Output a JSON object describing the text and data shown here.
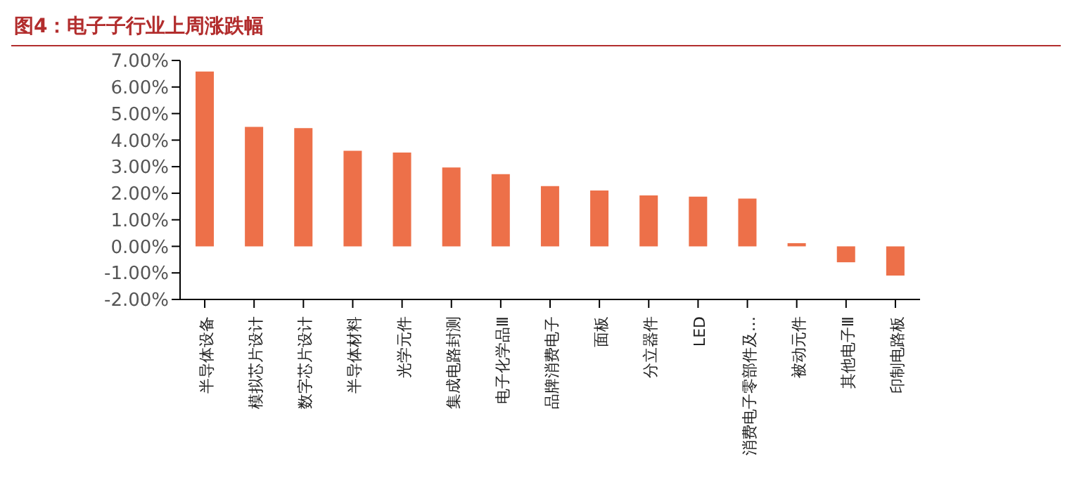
{
  "chart_data": {
    "type": "bar",
    "title": "图4：电子子行业上周涨跌幅",
    "categories": [
      "半导体设备",
      "模拟芯片设计",
      "数字芯片设计",
      "半导体材料",
      "光学元件",
      "集成电路封测",
      "电子化学品Ⅲ",
      "品牌消费电子",
      "面板",
      "分立器件",
      "LED",
      "消费电子零部件及…",
      "被动元件",
      "其他电子Ⅲ",
      "印制电路板"
    ],
    "values": [
      6.58,
      4.5,
      4.45,
      3.6,
      3.53,
      2.97,
      2.72,
      2.27,
      2.1,
      1.92,
      1.87,
      1.8,
      0.12,
      -0.6,
      -1.1
    ],
    "color": "#ed7049",
    "ylim": [
      -2,
      7
    ],
    "yticks": [
      {
        "value": -2,
        "label": "-2.00%"
      },
      {
        "value": -1,
        "label": "-1.00%"
      },
      {
        "value": 0,
        "label": "0.00%"
      },
      {
        "value": 1,
        "label": "1.00%"
      },
      {
        "value": 2,
        "label": "2.00%"
      },
      {
        "value": 3,
        "label": "3.00%"
      },
      {
        "value": 4,
        "label": "4.00%"
      },
      {
        "value": 5,
        "label": "5.00%"
      },
      {
        "value": 6,
        "label": "6.00%"
      },
      {
        "value": 7,
        "label": "7.00%"
      }
    ],
    "grid": false,
    "legend": false
  }
}
